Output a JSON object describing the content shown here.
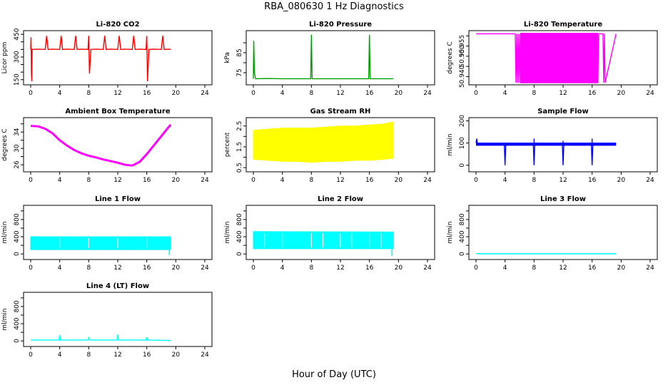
{
  "page": {
    "title": "RBA_080630  1 Hz Diagnostics",
    "xlabel": "Hour of Day (UTC)"
  },
  "chart_data": [
    {
      "id": "co2",
      "type": "line",
      "title": "Li-820 CO2",
      "ylabel": "Licor ppm",
      "xlim": [
        0,
        24
      ],
      "xticks": [
        0,
        4,
        8,
        12,
        16,
        20,
        24
      ],
      "ylim": [
        130,
        460
      ],
      "yticks": [
        150,
        200,
        250,
        300,
        350,
        400,
        450
      ],
      "ytick_labels": [
        "150",
        "",
        "",
        "300",
        "",
        "",
        "450"
      ],
      "color": "#ff0000",
      "x": [
        0,
        0.05,
        0.1,
        0.15,
        0.2,
        1.0,
        2.0,
        2.2,
        2.4,
        3.0,
        4.0,
        4.2,
        4.4,
        5.0,
        6.0,
        6.2,
        6.4,
        7.0,
        7.9,
        8.0,
        8.1,
        8.3,
        9.0,
        10.0,
        10.2,
        10.4,
        11.0,
        12.0,
        12.2,
        12.4,
        13.0,
        14.0,
        14.2,
        14.4,
        15.0,
        15.9,
        16.0,
        16.1,
        16.3,
        17.0,
        18.0,
        18.2,
        18.4,
        19.0,
        19.3
      ],
      "y": [
        350,
        430,
        190,
        140,
        350,
        352,
        350,
        440,
        350,
        352,
        350,
        440,
        350,
        352,
        350,
        440,
        350,
        352,
        350,
        440,
        190,
        350,
        352,
        350,
        440,
        350,
        352,
        350,
        440,
        350,
        352,
        350,
        440,
        350,
        352,
        350,
        440,
        140,
        350,
        352,
        350,
        440,
        350,
        352,
        350
      ]
    },
    {
      "id": "pressure",
      "type": "line",
      "title": "Li-820 Pressure",
      "ylabel": "kPa",
      "xlim": [
        0,
        24
      ],
      "xticks": [
        0,
        4,
        8,
        12,
        16,
        20,
        24
      ],
      "ylim": [
        70,
        95
      ],
      "yticks": [
        75,
        80,
        85,
        90
      ],
      "ytick_labels": [
        "75",
        "",
        "85",
        ""
      ],
      "color": "#00a000",
      "x": [
        0,
        0.05,
        0.15,
        0.3,
        2.0,
        4.0,
        6.0,
        7.9,
        8.0,
        8.1,
        10.0,
        12.0,
        14.0,
        15.9,
        16.0,
        16.1,
        18.0,
        19.3
      ],
      "y": [
        72,
        91,
        75,
        72,
        72.1,
        72,
        72,
        72,
        94,
        72,
        72,
        72,
        72,
        72,
        94,
        72,
        72,
        72
      ]
    },
    {
      "id": "licor_temp",
      "type": "line",
      "title": "Li-820 Temperature",
      "ylabel": "degrees C",
      "xlim": [
        0,
        24
      ],
      "xticks": [
        0,
        4,
        8,
        12,
        16,
        20,
        24
      ],
      "ylim": [
        50.937,
        50.9615
      ],
      "yticks": [
        50.94,
        50.945,
        50.95,
        50.955,
        50.96
      ],
      "ytick_labels": [
        "50.940",
        "",
        "50.950",
        "50.955",
        ""
      ],
      "color": "#ff00ff",
      "x": [
        0,
        5.4,
        5.5,
        5.6,
        5.7,
        5.8,
        5.9,
        6.0,
        6.1,
        16.8,
        16.9,
        17.5,
        17.6,
        17.7,
        17.8,
        19.3
      ],
      "y": [
        50.961,
        50.961,
        50.937,
        50.961,
        50.937,
        50.961,
        50.937,
        50.961,
        50.937,
        50.937,
        50.961,
        50.961,
        50.937,
        50.961,
        50.937,
        50.961
      ],
      "band": {
        "x0": 6.1,
        "x1": 16.8
      }
    },
    {
      "id": "box_temp",
      "type": "line",
      "title": "Ambient Box Temperature",
      "ylabel": "degrees C",
      "xlim": [
        0,
        24
      ],
      "xticks": [
        0,
        4,
        8,
        12,
        16,
        20,
        24
      ],
      "ylim": [
        24.8,
        37
      ],
      "yticks": [
        26,
        28,
        30,
        32,
        34,
        36
      ],
      "ytick_labels": [
        "26",
        "",
        "30",
        "",
        "34",
        ""
      ],
      "color": "#ff00ff",
      "x": [
        0,
        1,
        2,
        3,
        4,
        5,
        6,
        7,
        8,
        9,
        10,
        11,
        12,
        13,
        14,
        15,
        16,
        17,
        18,
        19,
        19.3
      ],
      "y": [
        35.5,
        35.4,
        34.8,
        33.7,
        32.0,
        30.7,
        29.6,
        28.8,
        28.2,
        27.8,
        27.3,
        26.9,
        26.5,
        26.0,
        25.8,
        26.7,
        28.6,
        30.8,
        33.0,
        35.2,
        35.8
      ]
    },
    {
      "id": "rh",
      "type": "band",
      "title": "Gas Stream RH",
      "ylabel": "percent",
      "xlim": [
        0,
        24
      ],
      "xticks": [
        0,
        4,
        8,
        12,
        16,
        20,
        24
      ],
      "ylim": [
        0.4,
        2.8
      ],
      "yticks": [
        0.5,
        1.0,
        1.5,
        2.0,
        2.5
      ],
      "ytick_labels": [
        "0.5",
        "",
        "1.5",
        "",
        "2.5"
      ],
      "color": "#ffff00",
      "x": [
        0,
        2,
        4,
        6,
        8,
        10,
        12,
        14,
        16,
        18,
        19.3
      ],
      "high": [
        2.3,
        2.35,
        2.4,
        2.4,
        2.4,
        2.45,
        2.5,
        2.5,
        2.55,
        2.6,
        2.7
      ],
      "low": [
        0.9,
        0.85,
        0.8,
        0.8,
        0.75,
        0.8,
        0.8,
        0.85,
        0.85,
        0.9,
        0.95
      ]
    },
    {
      "id": "sample_flow",
      "type": "line",
      "title": "Sample Flow",
      "ylabel": "ml/min",
      "xlim": [
        0,
        24
      ],
      "xticks": [
        0,
        4,
        8,
        12,
        16,
        20,
        24
      ],
      "ylim": [
        -20,
        205
      ],
      "yticks": [
        0,
        100,
        200
      ],
      "ytick_labels": [
        "0",
        "100",
        "200"
      ],
      "color": "#0000ff",
      "x": [
        0,
        0.1,
        0.2,
        3.9,
        4.0,
        4.1,
        7.9,
        8.0,
        8.1,
        11.9,
        12.0,
        12.1,
        15.9,
        16.0,
        16.1,
        19.3
      ],
      "y": [
        100,
        120,
        95,
        95,
        0,
        95,
        95,
        0,
        95,
        95,
        0,
        95,
        95,
        0,
        95,
        95
      ],
      "spikes": [
        {
          "x": 8.0,
          "y": 120
        },
        {
          "x": 12.0,
          "y": 110
        },
        {
          "x": 16.0,
          "y": 120
        }
      ],
      "band": {
        "x0": 0,
        "x1": 19.3,
        "y0": 88,
        "y1": 102
      }
    },
    {
      "id": "line1_flow",
      "type": "band",
      "title": "Line 1 Flow",
      "ylabel": "ml/min",
      "xlim": [
        0,
        24
      ],
      "xticks": [
        0,
        4,
        8,
        12,
        16,
        20,
        24
      ],
      "ylim": [
        -80,
        1080
      ],
      "yticks": [
        0,
        200,
        400,
        600,
        800,
        1000
      ],
      "ytick_labels": [
        "0",
        "",
        "400",
        "",
        "800",
        ""
      ],
      "color": "#00ffff",
      "x": [
        0,
        19.3
      ],
      "high": [
        400,
        400
      ],
      "low": [
        100,
        100
      ],
      "gaps": [
        4.0,
        8.0,
        12.0,
        16.0
      ],
      "dip": {
        "x": 19.1,
        "y": -30
      }
    },
    {
      "id": "line2_flow",
      "type": "band",
      "title": "Line 2 Flow",
      "ylabel": "ml/min",
      "xlim": [
        0,
        24
      ],
      "xticks": [
        0,
        4,
        8,
        12,
        16,
        20,
        24
      ],
      "ylim": [
        -80,
        1080
      ],
      "yticks": [
        0,
        200,
        400,
        600,
        800,
        1000
      ],
      "ytick_labels": [
        "0",
        "",
        "400",
        "",
        "800",
        ""
      ],
      "color": "#00ffff",
      "x": [
        0,
        19.3
      ],
      "high": [
        520,
        510
      ],
      "low": [
        120,
        120
      ],
      "gaps": [
        1.6,
        4.0,
        8.0,
        9.6,
        12.0,
        13.6,
        16.0,
        17.6
      ],
      "dip": {
        "x": 19.1,
        "y": -50
      }
    },
    {
      "id": "line3_flow",
      "type": "line",
      "title": "Line 3 Flow",
      "ylabel": "ml/min",
      "xlim": [
        0,
        24
      ],
      "xticks": [
        0,
        4,
        8,
        12,
        16,
        20,
        24
      ],
      "ylim": [
        -80,
        1080
      ],
      "yticks": [
        0,
        200,
        400,
        600,
        800,
        1000
      ],
      "ytick_labels": [
        "0",
        "",
        "400",
        "",
        "800",
        ""
      ],
      "color": "#00ffff",
      "x": [
        0,
        19.3
      ],
      "y": [
        5,
        5
      ]
    },
    {
      "id": "line4_flow",
      "type": "line",
      "title": "Line 4 (LT) Flow",
      "ylabel": "ml/min",
      "xlim": [
        0,
        24
      ],
      "xticks": [
        0,
        4,
        8,
        12,
        16,
        20,
        24
      ],
      "ylim": [
        -80,
        1080
      ],
      "yticks": [
        0,
        200,
        400,
        600,
        800,
        1000
      ],
      "ytick_labels": [
        "0",
        "",
        "400",
        "",
        "800",
        ""
      ],
      "color": "#00ffff",
      "x": [
        0,
        3.9,
        4.0,
        4.1,
        7.9,
        8.0,
        8.1,
        11.9,
        12.0,
        12.1,
        15.9,
        16.0,
        16.1,
        19.3
      ],
      "y": [
        20,
        20,
        140,
        20,
        20,
        90,
        20,
        20,
        150,
        20,
        20,
        90,
        20,
        10
      ]
    }
  ]
}
